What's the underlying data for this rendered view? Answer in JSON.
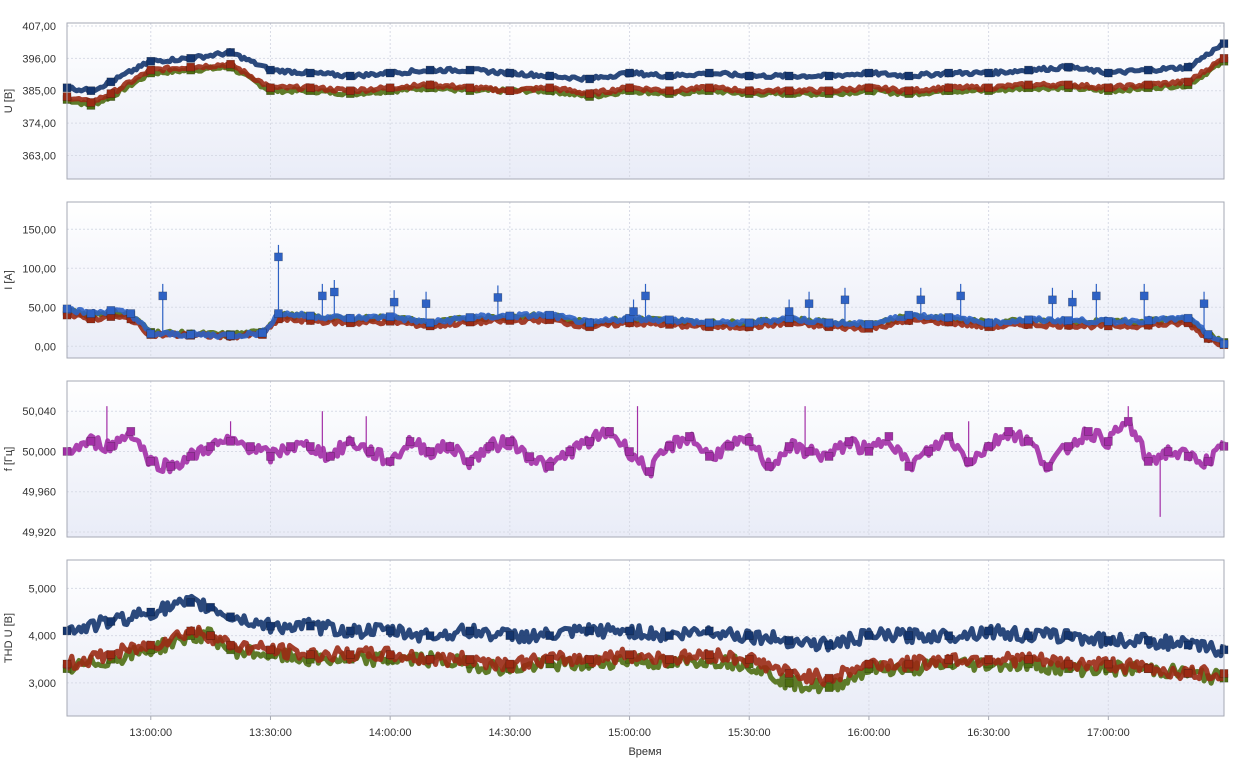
{
  "x_axis": {
    "label": "Время",
    "ticks": [
      "13:00:00",
      "13:30:00",
      "14:00:00",
      "14:30:00",
      "15:00:00",
      "15:30:00",
      "16:00:00",
      "16:30:00",
      "17:00:00"
    ],
    "tick_minutes": [
      780,
      810,
      840,
      870,
      900,
      930,
      960,
      990,
      1020
    ],
    "range_minutes": [
      759,
      1049
    ]
  },
  "colors": {
    "phase_green": "#4e6e12",
    "phase_red": "#9a2a14",
    "phase_navy": "#14356e",
    "current_blue": "#2e62c4",
    "frequency": "#a22ea6",
    "plot_bg_top": "#ffffff",
    "plot_bg_bottom": "#e9ecf7",
    "grid": "#d8dbe6",
    "border": "#a6a9b4"
  },
  "chart_data": [
    {
      "type": "line",
      "ylabel": "U [В]",
      "y_ticks": [
        "407,00",
        "396,00",
        "385,00",
        "374,00",
        "363,00"
      ],
      "y_tick_values": [
        407,
        396,
        385,
        374,
        363
      ],
      "ylim": [
        355,
        408
      ],
      "grid": true,
      "series": [
        {
          "color_key": "phase_green",
          "x": [
            759,
            765,
            770,
            780,
            790,
            800,
            810,
            820,
            830,
            840,
            850,
            860,
            870,
            880,
            890,
            900,
            910,
            920,
            930,
            940,
            950,
            960,
            970,
            980,
            990,
            1000,
            1010,
            1020,
            1030,
            1040,
            1049
          ],
          "values": [
            382,
            380,
            383,
            391,
            392,
            393,
            385,
            385,
            384,
            385,
            386,
            385,
            385,
            385,
            383,
            385,
            384,
            385,
            384,
            384,
            384,
            385,
            384,
            385,
            385,
            386,
            386,
            385,
            386,
            387,
            395
          ]
        },
        {
          "color_key": "phase_red",
          "x": [
            759,
            765,
            770,
            780,
            790,
            800,
            810,
            820,
            830,
            840,
            850,
            860,
            870,
            880,
            890,
            900,
            910,
            920,
            930,
            940,
            950,
            960,
            970,
            980,
            990,
            1000,
            1010,
            1020,
            1030,
            1040,
            1049
          ],
          "values": [
            383,
            381,
            384,
            392,
            393,
            394,
            386,
            386,
            385,
            386,
            387,
            386,
            385,
            386,
            384,
            386,
            385,
            386,
            385,
            385,
            385,
            386,
            385,
            386,
            386,
            387,
            387,
            386,
            387,
            388,
            396
          ]
        },
        {
          "color_key": "phase_navy",
          "x": [
            759,
            765,
            770,
            780,
            790,
            800,
            810,
            820,
            830,
            840,
            850,
            860,
            870,
            880,
            890,
            900,
            910,
            920,
            930,
            940,
            950,
            960,
            970,
            980,
            990,
            1000,
            1010,
            1020,
            1030,
            1040,
            1049
          ],
          "values": [
            386,
            385,
            388,
            395,
            396,
            398,
            392,
            391,
            390,
            391,
            392,
            392,
            391,
            390,
            389,
            391,
            390,
            391,
            390,
            390,
            390,
            391,
            390,
            391,
            391,
            392,
            393,
            391,
            392,
            393,
            401
          ]
        }
      ]
    },
    {
      "type": "line",
      "ylabel": "I [A]",
      "y_tick_values": [
        150,
        100,
        50,
        0
      ],
      "y_ticks": [
        "150,00",
        "100,00",
        "50,00",
        "0,00"
      ],
      "ylim": [
        -15,
        185
      ],
      "grid": true,
      "series": [
        {
          "color_key": "phase_green",
          "x": [
            759,
            765,
            770,
            775,
            780,
            790,
            800,
            808,
            812,
            820,
            830,
            840,
            850,
            860,
            870,
            880,
            890,
            900,
            910,
            920,
            930,
            940,
            950,
            960,
            970,
            980,
            990,
            1000,
            1010,
            1020,
            1030,
            1040,
            1045,
            1049
          ],
          "values": [
            45,
            40,
            44,
            40,
            18,
            16,
            15,
            18,
            40,
            38,
            35,
            37,
            30,
            36,
            38,
            39,
            30,
            35,
            33,
            30,
            30,
            35,
            30,
            28,
            38,
            36,
            30,
            33,
            32,
            31,
            32,
            35,
            15,
            5
          ]
        },
        {
          "color_key": "phase_red",
          "x": [
            759,
            765,
            770,
            775,
            780,
            790,
            800,
            808,
            812,
            820,
            830,
            840,
            850,
            860,
            870,
            880,
            890,
            900,
            910,
            920,
            930,
            940,
            950,
            960,
            970,
            980,
            990,
            1000,
            1010,
            1020,
            1030,
            1040,
            1045,
            1049
          ],
          "values": [
            40,
            35,
            38,
            35,
            15,
            14,
            13,
            15,
            35,
            33,
            30,
            32,
            26,
            31,
            33,
            34,
            25,
            30,
            28,
            25,
            25,
            30,
            25,
            23,
            33,
            31,
            25,
            28,
            27,
            26,
            27,
            30,
            10,
            2
          ]
        },
        {
          "color_key": "current_blue",
          "x": [
            759,
            765,
            770,
            775,
            780,
            790,
            800,
            808,
            812,
            820,
            830,
            840,
            850,
            860,
            870,
            880,
            890,
            900,
            910,
            920,
            930,
            940,
            950,
            960,
            970,
            980,
            990,
            1000,
            1010,
            1020,
            1030,
            1040,
            1045,
            1049
          ],
          "values": [
            48,
            42,
            46,
            42,
            16,
            15,
            14,
            17,
            42,
            39,
            36,
            38,
            30,
            37,
            39,
            40,
            30,
            36,
            34,
            30,
            30,
            36,
            30,
            28,
            40,
            37,
            30,
            34,
            33,
            32,
            33,
            36,
            15,
            3
          ]
        }
      ],
      "peaks": {
        "x": [
          783,
          812,
          823,
          826,
          841,
          849,
          867,
          901,
          904,
          940,
          945,
          954,
          973,
          983,
          1006,
          1011,
          1017,
          1029,
          1044
        ],
        "values": [
          80,
          130,
          80,
          85,
          72,
          70,
          78,
          60,
          80,
          60,
          70,
          75,
          75,
          80,
          75,
          72,
          80,
          80,
          70
        ]
      }
    },
    {
      "type": "line",
      "ylabel": "f [Гц]",
      "y_tick_values": [
        50.04,
        50.0,
        49.96,
        49.92
      ],
      "y_ticks": [
        "50,040",
        "50,000",
        "49,960",
        "49,920"
      ],
      "ylim": [
        49.915,
        50.07
      ],
      "grid": true,
      "series": [
        {
          "color_key": "frequency",
          "x": [
            759,
            765,
            770,
            775,
            780,
            785,
            790,
            795,
            800,
            805,
            810,
            815,
            820,
            825,
            830,
            835,
            840,
            845,
            850,
            855,
            860,
            865,
            870,
            875,
            880,
            885,
            890,
            895,
            900,
            905,
            910,
            915,
            920,
            925,
            930,
            935,
            940,
            945,
            950,
            955,
            960,
            965,
            970,
            975,
            980,
            985,
            990,
            995,
            1000,
            1005,
            1010,
            1015,
            1020,
            1025,
            1030,
            1035,
            1040,
            1045,
            1049
          ],
          "values": [
            50.0,
            50.01,
            50.005,
            50.02,
            49.99,
            49.985,
            49.995,
            50.005,
            50.01,
            50.005,
            49.995,
            50.005,
            50.005,
            49.995,
            50.01,
            50.0,
            49.99,
            50.01,
            50.0,
            50.005,
            49.99,
            50.005,
            50.01,
            49.995,
            49.985,
            50.0,
            50.01,
            50.02,
            50.0,
            49.98,
            50.005,
            50.015,
            49.995,
            50.005,
            50.01,
            49.985,
            50.005,
            50.0,
            49.995,
            50.01,
            50.0,
            50.015,
            49.985,
            50.0,
            50.015,
            49.99,
            50.005,
            50.02,
            50.01,
            49.985,
            50.005,
            50.02,
            50.01,
            50.03,
            49.99,
            50.0,
            49.995,
            49.99,
            50.005
          ]
        }
      ],
      "peaks": {
        "x": [
          769,
          800,
          823,
          834,
          902,
          944,
          985,
          1025,
          1033
        ],
        "values": [
          50.045,
          50.03,
          50.04,
          50.035,
          50.045,
          50.045,
          50.03,
          50.045,
          49.935
        ]
      }
    },
    {
      "type": "line",
      "ylabel": "THD U [В]",
      "y_tick_values": [
        5.0,
        4.0,
        3.0
      ],
      "y_ticks": [
        "5,000",
        "4,000",
        "3,000"
      ],
      "ylim": [
        2.3,
        5.6
      ],
      "grid": true,
      "series": [
        {
          "color_key": "phase_green",
          "x": [
            759,
            770,
            780,
            790,
            795,
            800,
            810,
            820,
            830,
            840,
            850,
            860,
            870,
            880,
            890,
            900,
            910,
            920,
            930,
            940,
            950,
            960,
            970,
            980,
            990,
            1000,
            1010,
            1020,
            1030,
            1040,
            1049
          ],
          "values": [
            3.3,
            3.5,
            3.7,
            4.0,
            4.0,
            3.7,
            3.6,
            3.5,
            3.5,
            3.5,
            3.5,
            3.4,
            3.3,
            3.4,
            3.4,
            3.5,
            3.4,
            3.5,
            3.4,
            3.0,
            2.9,
            3.3,
            3.3,
            3.4,
            3.4,
            3.4,
            3.3,
            3.3,
            3.3,
            3.2,
            3.1
          ]
        },
        {
          "color_key": "phase_red",
          "x": [
            759,
            770,
            780,
            790,
            795,
            800,
            810,
            820,
            830,
            840,
            850,
            860,
            870,
            880,
            890,
            900,
            910,
            920,
            930,
            940,
            950,
            960,
            970,
            980,
            990,
            1000,
            1010,
            1020,
            1030,
            1040,
            1049
          ],
          "values": [
            3.4,
            3.6,
            3.8,
            4.1,
            4.0,
            3.8,
            3.7,
            3.6,
            3.6,
            3.6,
            3.5,
            3.5,
            3.4,
            3.5,
            3.5,
            3.6,
            3.5,
            3.6,
            3.5,
            3.2,
            3.1,
            3.4,
            3.4,
            3.5,
            3.5,
            3.5,
            3.4,
            3.4,
            3.3,
            3.2,
            3.2
          ]
        },
        {
          "color_key": "phase_navy",
          "x": [
            759,
            770,
            780,
            790,
            795,
            800,
            810,
            820,
            830,
            840,
            850,
            860,
            870,
            880,
            890,
            900,
            910,
            920,
            930,
            940,
            950,
            960,
            970,
            980,
            990,
            1000,
            1010,
            1020,
            1030,
            1040,
            1049
          ],
          "values": [
            4.1,
            4.3,
            4.5,
            4.7,
            4.6,
            4.4,
            4.2,
            4.2,
            4.1,
            4.1,
            4.0,
            4.1,
            4.0,
            4.0,
            4.1,
            4.1,
            4.0,
            4.1,
            4.0,
            3.9,
            3.8,
            4.0,
            4.0,
            4.0,
            4.1,
            4.0,
            4.0,
            3.9,
            3.9,
            3.8,
            3.7
          ]
        }
      ]
    }
  ]
}
